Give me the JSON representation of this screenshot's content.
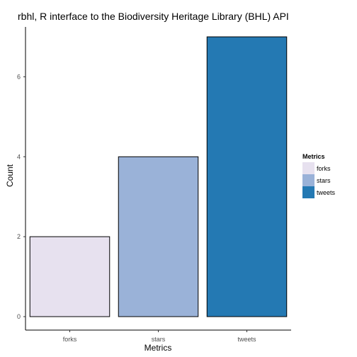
{
  "chart_data": {
    "type": "bar",
    "title": "rbhl, R interface to the Biodiversity Heritage Library (BHL) API",
    "xlabel": "Metrics",
    "ylabel": "Count",
    "categories": [
      "forks",
      "stars",
      "tweets"
    ],
    "values": [
      2,
      4,
      7
    ],
    "ylim": [
      0,
      7
    ],
    "yticks": [
      0,
      2,
      4,
      6
    ],
    "colors": [
      "#e7e1ef",
      "#9ab2d8",
      "#2479b3"
    ],
    "bar_edge_color": "#000000",
    "grid": false,
    "legend": {
      "title": "Metrics",
      "entries": [
        "forks",
        "stars",
        "tweets"
      ],
      "placement": "right"
    }
  }
}
